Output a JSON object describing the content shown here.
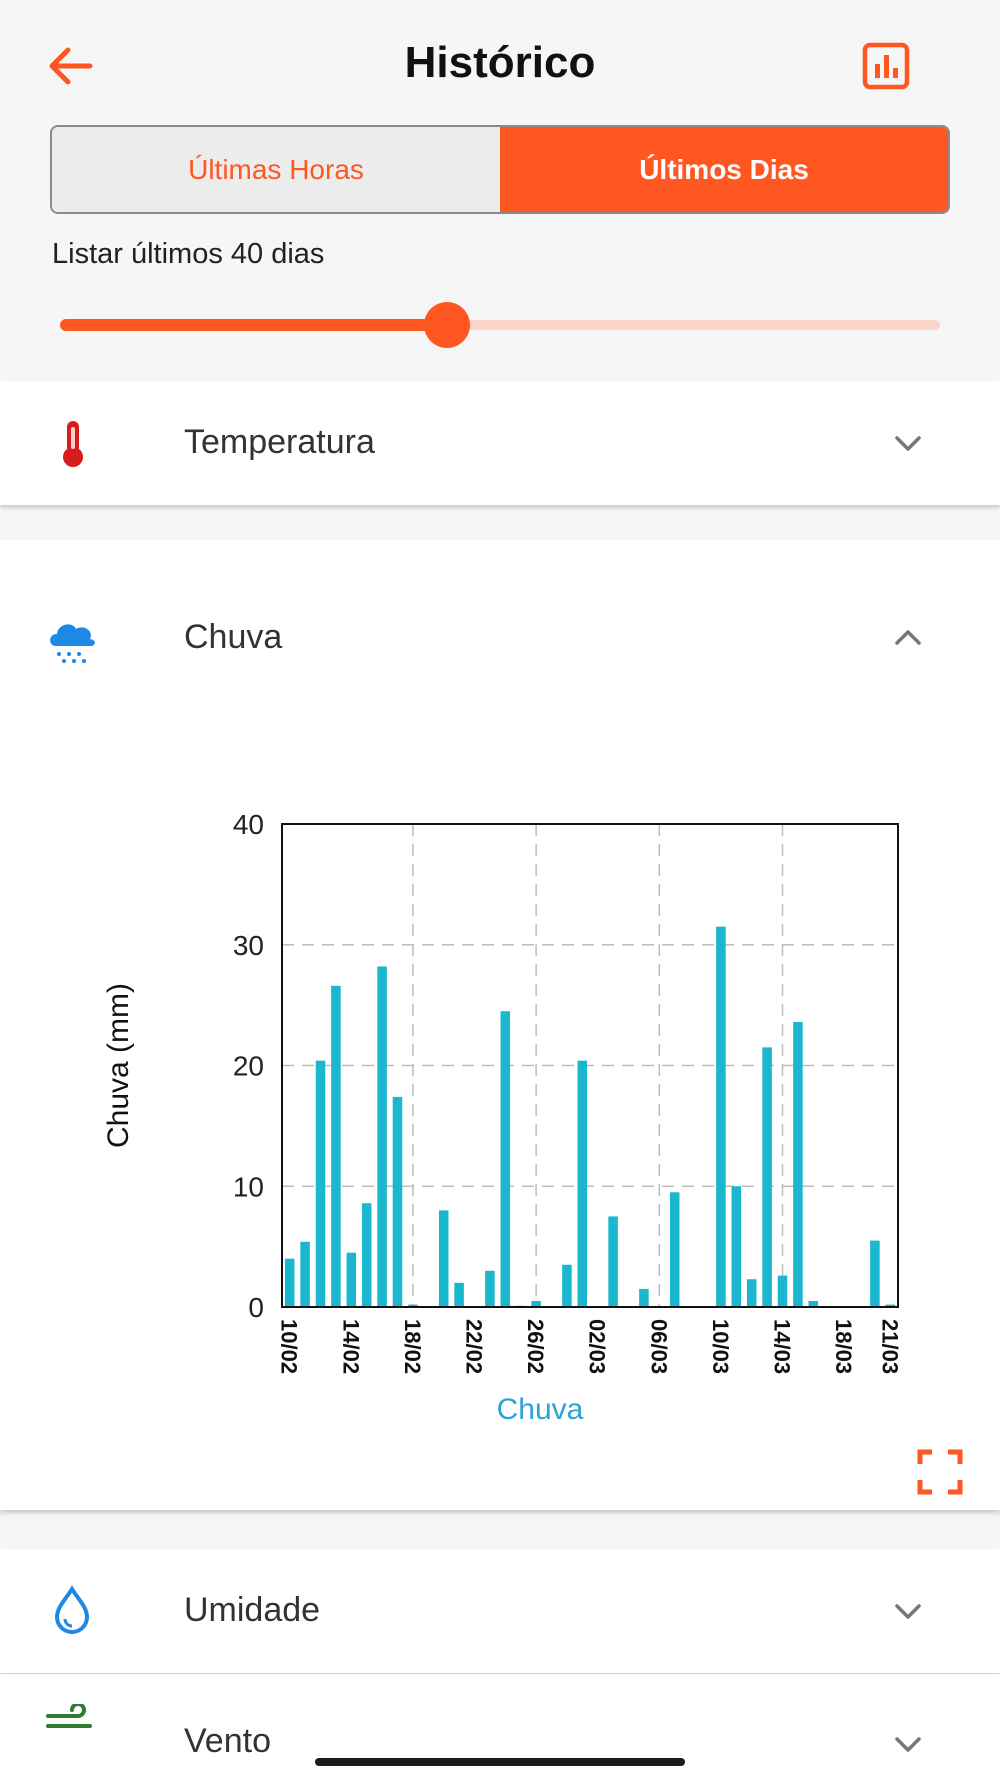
{
  "header": {
    "title": "Histórico",
    "back_icon": "arrow-left-icon",
    "chart_icon": "bar-chart-icon",
    "accent": "#ff5722"
  },
  "tabs": [
    {
      "label": "Últimas Horas",
      "active": false
    },
    {
      "label": "Últimos Dias",
      "active": true
    }
  ],
  "range": {
    "label": "Listar últimos 40 dias",
    "value": 40,
    "fraction": 0.44
  },
  "sections": {
    "temperatura": {
      "label": "Temperatura",
      "icon": "thermometer-icon",
      "expanded": false
    },
    "chuva": {
      "label": "Chuva",
      "icon": "rain-cloud-icon",
      "expanded": true
    },
    "umidade": {
      "label": "Umidade",
      "icon": "water-drop-icon",
      "expanded": false
    },
    "vento": {
      "label": "Vento",
      "icon": "wind-icon",
      "expanded": false
    }
  },
  "chart_data": {
    "type": "bar",
    "ylabel": "Chuva (mm)",
    "legend": "Chuva",
    "ylim": [
      0,
      40
    ],
    "yticks": [
      "0",
      "10",
      "20",
      "30",
      "40"
    ],
    "xticks": [
      "10/02",
      "14/02",
      "18/02",
      "22/02",
      "26/02",
      "02/03",
      "06/03",
      "10/03",
      "14/03",
      "18/03",
      "21/03"
    ],
    "bar_color": "#1bb7cf",
    "grid": true,
    "series": [
      {
        "name": "Chuva",
        "dates": [
          "10/02",
          "11/02",
          "12/02",
          "13/02",
          "14/02",
          "15/02",
          "16/02",
          "17/02",
          "18/02",
          "19/02",
          "20/02",
          "21/02",
          "22/02",
          "23/02",
          "24/02",
          "25/02",
          "26/02",
          "27/02",
          "28/02",
          "01/03",
          "02/03",
          "03/03",
          "04/03",
          "05/03",
          "06/03",
          "07/03",
          "08/03",
          "09/03",
          "10/03",
          "11/03",
          "12/03",
          "13/03",
          "14/03",
          "15/03",
          "16/03",
          "17/03",
          "18/03",
          "19/03",
          "20/03",
          "21/03"
        ],
        "values": [
          4.0,
          5.4,
          20.4,
          26.6,
          4.5,
          8.6,
          28.2,
          17.4,
          0.2,
          0,
          8.0,
          2.0,
          0,
          3.0,
          24.5,
          0.1,
          0.5,
          0,
          3.5,
          20.4,
          0,
          7.5,
          0,
          1.5,
          0,
          9.5,
          0,
          0,
          31.5,
          10.0,
          2.3,
          21.5,
          2.6,
          23.6,
          0.5,
          0,
          0,
          0,
          5.5,
          0.2
        ]
      }
    ]
  },
  "expand_icon": "fullscreen-icon"
}
